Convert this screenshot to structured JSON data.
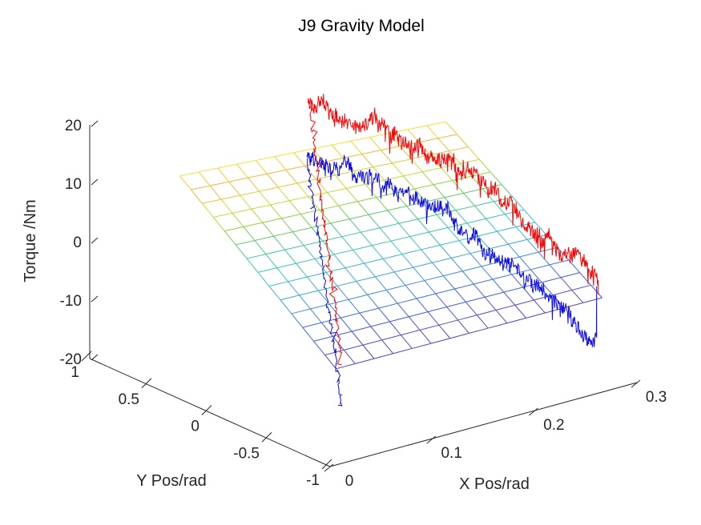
{
  "figure": {
    "background": "#ffffff"
  },
  "chart_data": {
    "type": "line",
    "projection": "3d",
    "title": "J9 Gravity Model",
    "grid": "off",
    "axes": {
      "x": {
        "label": "X Pos/rad",
        "lim": [
          0,
          0.3
        ],
        "ticks": [
          "0",
          "0.1",
          "0.2",
          "0.3"
        ],
        "tick_values": [
          0,
          0.1,
          0.2,
          0.3
        ]
      },
      "y": {
        "label": "Y Pos/rad",
        "lim": [
          -1,
          1
        ],
        "ticks": [
          "1",
          "0.5",
          "0",
          "-0.5",
          "-1"
        ],
        "tick_values": [
          1,
          0.5,
          0,
          -0.5,
          -1
        ]
      },
      "z": {
        "label": "Torque /Nm",
        "lim": [
          -20,
          20
        ],
        "ticks": [
          "20",
          "10",
          "0",
          "-10",
          "-20"
        ],
        "tick_values": [
          20,
          10,
          0,
          -10,
          -20
        ]
      }
    },
    "axis_color": "#262626",
    "surface": {
      "name": "gravity-model-mesh-plane",
      "x_range": [
        0,
        0.26
      ],
      "y_range": [
        -1.05,
        0.25
      ],
      "grid_cells": [
        14,
        14
      ],
      "z_corners": {
        "x0_ymax": 18.2,
        "x1_ymax": 15.0,
        "x0_ymin": -2.8,
        "x1_ymin": -3.1
      },
      "colormap_stops": [
        [
          1.0,
          "#efe52f"
        ],
        [
          0.92,
          "#f3b33a"
        ],
        [
          0.8,
          "#cfdd32"
        ],
        [
          0.7,
          "#86cf48"
        ],
        [
          0.58,
          "#43c790"
        ],
        [
          0.47,
          "#38c5c8"
        ],
        [
          0.35,
          "#3fa4e0"
        ],
        [
          0.18,
          "#4165e2"
        ],
        [
          0.0,
          "#5a3fc2"
        ]
      ]
    },
    "series": [
      {
        "name": "torque-trace-blue",
        "color": "#0d0de6",
        "y_pos": -0.807,
        "start_drop": {
          "x": [
            0.0,
            0.0344
          ],
          "z": [
            31.7,
            -13.3
          ]
        },
        "profile_x_z": [
          [
            0.0,
            31.7
          ],
          [
            0.033,
            27.5
          ],
          [
            0.074,
            23.2
          ],
          [
            0.113,
            18.0
          ],
          [
            0.137,
            14.8
          ],
          [
            0.168,
            9.2
          ],
          [
            0.2,
            3.6
          ],
          [
            0.215,
            0.2
          ],
          [
            0.247,
            -5.4
          ],
          [
            0.27,
            -9.2
          ],
          [
            0.283,
            -12.4
          ]
        ],
        "end_spike_z": [
          -4.5,
          -13.3
        ],
        "noise_amp_nm": 1.3,
        "seed": 7
      },
      {
        "name": "torque-trace-red",
        "color": "#f70707",
        "y_pos": -0.82,
        "start_drop": {
          "x": [
            0.0,
            0.033
          ],
          "z": [
            41.3,
            -5.3
          ]
        },
        "profile_x_z": [
          [
            0.0,
            41.3
          ],
          [
            0.033,
            36.8
          ],
          [
            0.074,
            32.7
          ],
          [
            0.113,
            27.4
          ],
          [
            0.137,
            24.2
          ],
          [
            0.168,
            18.6
          ],
          [
            0.2,
            13.0
          ],
          [
            0.215,
            9.5
          ],
          [
            0.247,
            3.9
          ],
          [
            0.27,
            0.0
          ],
          [
            0.283,
            -3.3
          ]
        ],
        "end_spike_z": [
          -3.3,
          -5.8
        ],
        "noise_amp_nm": 1.3,
        "seed": 13
      }
    ]
  }
}
